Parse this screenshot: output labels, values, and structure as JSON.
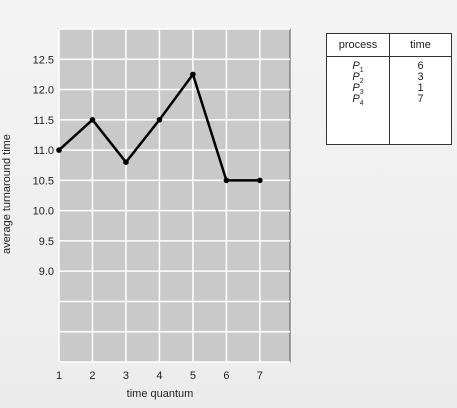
{
  "chart_data": {
    "type": "line",
    "title": "",
    "xlabel": "time quantum",
    "ylabel": "average turnaround time",
    "x": [
      1,
      2,
      3,
      4,
      5,
      6,
      7
    ],
    "series": [
      {
        "name": "average turnaround time",
        "values": [
          11.0,
          11.5,
          10.8,
          11.5,
          12.25,
          10.5,
          10.5
        ]
      }
    ],
    "x_ticks": [
      "1",
      "2",
      "3",
      "4",
      "5",
      "6",
      "7"
    ],
    "y_ticks": [
      "9.0",
      "9.5",
      "10.0",
      "10.5",
      "11.0",
      "11.5",
      "12.0",
      "12.5"
    ],
    "xlim": [
      1,
      7.9
    ],
    "ylim": [
      7.5,
      13.0
    ],
    "grid": true
  },
  "table": {
    "headers": [
      "process",
      "time"
    ],
    "rows": [
      {
        "process": "P",
        "sub": "1",
        "time": "6"
      },
      {
        "process": "P",
        "sub": "2",
        "time": "3"
      },
      {
        "process": "P",
        "sub": "3",
        "time": "1"
      },
      {
        "process": "P",
        "sub": "4",
        "time": "7"
      }
    ]
  },
  "colors": {
    "plot_bg": "#c9c9c9",
    "grid": "#ffffff",
    "line": "#000000"
  }
}
